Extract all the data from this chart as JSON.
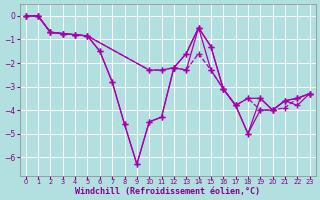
{
  "background_color": "#b2e0e0",
  "grid_color": "#ffffff",
  "line_color": "#aa00aa",
  "xlabel": "Windchill (Refroidissement éolien,°C)",
  "xlabel_color": "#880088",
  "tick_color": "#880088",
  "xlim": [
    -0.5,
    23.5
  ],
  "ylim": [
    -6.8,
    0.5
  ],
  "yticks": [
    0,
    -1,
    -2,
    -3,
    -4,
    -5,
    -6
  ],
  "xticks": [
    0,
    1,
    2,
    3,
    4,
    5,
    6,
    7,
    8,
    9,
    10,
    11,
    12,
    13,
    14,
    15,
    16,
    17,
    18,
    19,
    20,
    21,
    22,
    23
  ],
  "line1_x": [
    0,
    1,
    2,
    3,
    4,
    5,
    6,
    7,
    8,
    9,
    10,
    11,
    12,
    13,
    14,
    15,
    16,
    17,
    18,
    19,
    20,
    21,
    22,
    23
  ],
  "line1_y": [
    0.0,
    0.0,
    -0.7,
    -0.75,
    -0.8,
    -0.85,
    -1.5,
    -2.8,
    -4.6,
    -6.3,
    -4.5,
    -4.3,
    -2.2,
    -2.3,
    -0.5,
    -1.3,
    -3.1,
    -3.8,
    -5.0,
    -3.5,
    -4.0,
    -3.6,
    -3.5,
    -3.3
  ],
  "line2_x": [
    0,
    1,
    2,
    3,
    4,
    5,
    6,
    7,
    8,
    9,
    10,
    11,
    12,
    13,
    14,
    15,
    16,
    17,
    18,
    19,
    20,
    21,
    22,
    23
  ],
  "line2_y": [
    0.0,
    0.0,
    -0.7,
    -0.75,
    -0.8,
    -0.85,
    -1.5,
    -2.8,
    -4.6,
    -6.3,
    -4.5,
    -4.3,
    -2.2,
    -1.6,
    -0.5,
    -2.3,
    -3.1,
    -3.8,
    -5.0,
    -4.0,
    -4.0,
    -3.6,
    -3.8,
    -3.3
  ],
  "line3_x": [
    0,
    1,
    2,
    3,
    4,
    5,
    10,
    11,
    12,
    13,
    14,
    15,
    16,
    17,
    18,
    19,
    20,
    21,
    22,
    23
  ],
  "line3_y": [
    0.0,
    0.0,
    -0.7,
    -0.75,
    -0.8,
    -0.85,
    -2.3,
    -2.3,
    -2.2,
    -1.6,
    -0.5,
    -1.3,
    -3.1,
    -3.8,
    -3.5,
    -3.5,
    -4.0,
    -3.6,
    -3.5,
    -3.3
  ],
  "line4_x": [
    0,
    1,
    2,
    3,
    4,
    5,
    10,
    11,
    12,
    13,
    14,
    15,
    16,
    17,
    18,
    19,
    20,
    21,
    22,
    23
  ],
  "line4_y": [
    0.0,
    0.0,
    -0.7,
    -0.75,
    -0.8,
    -0.85,
    -2.3,
    -2.3,
    -2.2,
    -2.3,
    -1.6,
    -2.3,
    -3.1,
    -3.8,
    -3.5,
    -4.0,
    -4.0,
    -3.9,
    -3.5,
    -3.3
  ]
}
